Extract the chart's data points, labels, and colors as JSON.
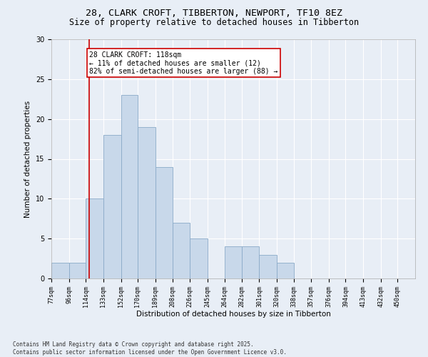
{
  "title_line1": "28, CLARK CROFT, TIBBERTON, NEWPORT, TF10 8EZ",
  "title_line2": "Size of property relative to detached houses in Tibberton",
  "xlabel": "Distribution of detached houses by size in Tibberton",
  "ylabel": "Number of detached properties",
  "bar_color": "#c8d8ea",
  "bar_edgecolor": "#8aaac8",
  "annotation_line1": "28 CLARK CROFT: 118sqm",
  "annotation_line2": "← 11% of detached houses are smaller (12)",
  "annotation_line3": "82% of semi-detached houses are larger (88) →",
  "annotation_box_facecolor": "#ffffff",
  "annotation_box_edgecolor": "#cc0000",
  "vline_x": 118,
  "vline_color": "#cc0000",
  "categories": [
    "77sqm",
    "96sqm",
    "114sqm",
    "133sqm",
    "152sqm",
    "170sqm",
    "189sqm",
    "208sqm",
    "226sqm",
    "245sqm",
    "264sqm",
    "282sqm",
    "301sqm",
    "320sqm",
    "338sqm",
    "357sqm",
    "376sqm",
    "394sqm",
    "413sqm",
    "432sqm",
    "450sqm"
  ],
  "bin_edges": [
    77,
    96,
    114,
    133,
    152,
    170,
    189,
    208,
    226,
    245,
    264,
    282,
    301,
    320,
    338,
    357,
    376,
    394,
    413,
    432,
    450
  ],
  "values": [
    2,
    2,
    10,
    18,
    23,
    19,
    14,
    7,
    5,
    0,
    4,
    4,
    3,
    2,
    0,
    0,
    0,
    0,
    0,
    0,
    0
  ],
  "ylim": [
    0,
    30
  ],
  "yticks": [
    0,
    5,
    10,
    15,
    20,
    25,
    30
  ],
  "background_color": "#e8eef6",
  "footer_text": "Contains HM Land Registry data © Crown copyright and database right 2025.\nContains public sector information licensed under the Open Government Licence v3.0.",
  "title_fontsize": 9.5,
  "subtitle_fontsize": 8.5,
  "tick_fontsize": 6,
  "ylabel_fontsize": 7.5,
  "xlabel_fontsize": 7.5,
  "annotation_fontsize": 7,
  "footer_fontsize": 5.5
}
